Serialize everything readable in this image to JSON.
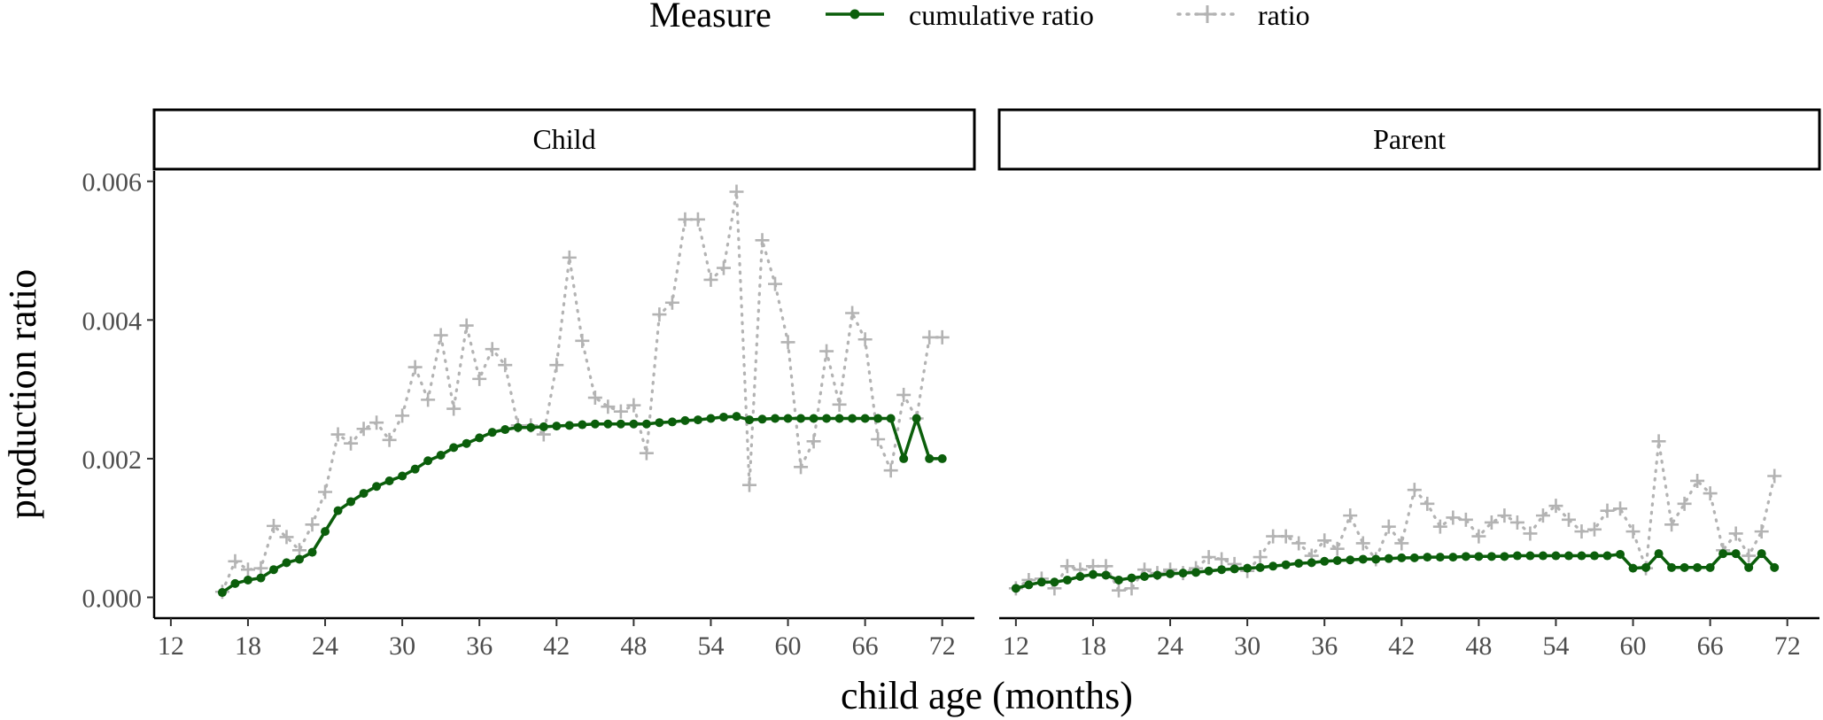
{
  "legend": {
    "title": "Measure",
    "items": [
      {
        "label": "cumulative ratio",
        "color": "#0b5e0b",
        "style": "solid-dots"
      },
      {
        "label": "ratio",
        "color": "#b3b3b3",
        "style": "dotted-plus"
      }
    ]
  },
  "chart_data": {
    "type": "line",
    "xlabel": "child age (months)",
    "ylabel": "production ratio",
    "xlim": [
      10.7,
      74.5
    ],
    "ylim": [
      -0.0003,
      0.00615
    ],
    "xticks": [
      12,
      18,
      24,
      30,
      36,
      42,
      48,
      54,
      60,
      66,
      72
    ],
    "yticks": [
      0.0,
      0.002,
      0.004,
      0.006
    ],
    "ytick_labels": [
      "0.000",
      "0.002",
      "0.004",
      "0.006"
    ],
    "grid": false,
    "legend_position": "top",
    "colors": {
      "cumulative": "#0b5e0b",
      "ratio": "#b3b3b3"
    },
    "panels": [
      {
        "title": "Child",
        "series": [
          {
            "name": "cumulative ratio",
            "x": [
              16,
              17,
              18,
              19,
              20,
              21,
              22,
              23,
              24,
              25,
              26,
              27,
              28,
              29,
              30,
              31,
              32,
              33,
              34,
              35,
              36,
              37,
              38,
              39,
              40,
              41,
              42,
              43,
              44,
              45,
              46,
              47,
              48,
              49,
              50,
              51,
              52,
              53,
              54,
              55,
              56,
              57,
              58,
              59,
              60,
              61,
              62,
              63,
              64,
              65,
              66,
              67,
              68,
              69,
              70,
              71,
              72
            ],
            "y": [
              7e-05,
              0.0002,
              0.00025,
              0.00028,
              0.0004,
              0.0005,
              0.00055,
              0.00065,
              0.00095,
              0.00125,
              0.00138,
              0.0015,
              0.0016,
              0.00168,
              0.00175,
              0.00185,
              0.00197,
              0.00205,
              0.00216,
              0.00222,
              0.0023,
              0.00238,
              0.00242,
              0.00245,
              0.00245,
              0.00246,
              0.00247,
              0.00248,
              0.00249,
              0.0025,
              0.0025,
              0.0025,
              0.0025,
              0.0025,
              0.00252,
              0.00253,
              0.00255,
              0.00256,
              0.00258,
              0.0026,
              0.00261,
              0.00256,
              0.00257,
              0.00258,
              0.00258,
              0.00258,
              0.00258,
              0.00258,
              0.00258,
              0.00258,
              0.00258,
              0.00258,
              0.00258,
              0.002,
              0.00258,
              0.002,
              0.002
            ]
          },
          {
            "name": "ratio",
            "x": [
              16,
              17,
              18,
              19,
              20,
              21,
              22,
              23,
              24,
              25,
              26,
              27,
              28,
              29,
              30,
              31,
              32,
              33,
              34,
              35,
              36,
              37,
              38,
              39,
              40,
              41,
              42,
              43,
              44,
              45,
              46,
              47,
              48,
              49,
              50,
              51,
              52,
              53,
              54,
              55,
              56,
              57,
              58,
              59,
              60,
              61,
              62,
              63,
              64,
              65,
              66,
              67,
              68,
              69,
              70,
              71,
              72
            ],
            "y": [
              8e-05,
              0.00052,
              0.0004,
              0.00042,
              0.00103,
              0.00087,
              0.00068,
              0.00105,
              0.00152,
              0.00235,
              0.00222,
              0.00243,
              0.00252,
              0.00227,
              0.00262,
              0.00332,
              0.00285,
              0.00378,
              0.00272,
              0.00392,
              0.00315,
              0.00358,
              0.00335,
              0.00248,
              0.00248,
              0.00235,
              0.00335,
              0.0049,
              0.0037,
              0.00288,
              0.00275,
              0.00268,
              0.00277,
              0.00208,
              0.00408,
              0.00425,
              0.00545,
              0.00545,
              0.00458,
              0.00475,
              0.00585,
              0.00162,
              0.00515,
              0.00452,
              0.00368,
              0.00188,
              0.00225,
              0.00355,
              0.00278,
              0.0041,
              0.00372,
              0.00228,
              0.00183,
              0.00292,
              0.00258,
              0.00375,
              0.00375
            ]
          }
        ]
      },
      {
        "title": "Parent",
        "series": [
          {
            "name": "cumulative ratio",
            "x": [
              12,
              13,
              14,
              15,
              16,
              17,
              18,
              19,
              20,
              21,
              22,
              23,
              24,
              25,
              26,
              27,
              28,
              29,
              30,
              31,
              32,
              33,
              34,
              35,
              36,
              37,
              38,
              39,
              40,
              41,
              42,
              43,
              44,
              45,
              46,
              47,
              48,
              49,
              50,
              51,
              52,
              53,
              54,
              55,
              56,
              57,
              58,
              59,
              60,
              61,
              62,
              63,
              64,
              65,
              66,
              67,
              68,
              69,
              70,
              71
            ],
            "y": [
              0.00013,
              0.00018,
              0.00022,
              0.00022,
              0.00025,
              0.0003,
              0.00033,
              0.00032,
              0.00025,
              0.00028,
              0.0003,
              0.00032,
              0.00034,
              0.00035,
              0.00036,
              0.00038,
              0.0004,
              0.00041,
              0.00042,
              0.00043,
              0.00045,
              0.00047,
              0.00049,
              0.0005,
              0.00052,
              0.00053,
              0.00054,
              0.00055,
              0.00055,
              0.00056,
              0.00057,
              0.00057,
              0.00058,
              0.00058,
              0.00058,
              0.00059,
              0.00059,
              0.00059,
              0.00059,
              0.0006,
              0.0006,
              0.0006,
              0.0006,
              0.0006,
              0.0006,
              0.0006,
              0.0006,
              0.00062,
              0.00042,
              0.00043,
              0.00063,
              0.00043,
              0.00043,
              0.00043,
              0.00043,
              0.00063,
              0.00063,
              0.00043,
              0.00063,
              0.00043
            ]
          },
          {
            "name": "ratio",
            "x": [
              12,
              13,
              14,
              15,
              16,
              17,
              18,
              19,
              20,
              21,
              22,
              23,
              24,
              25,
              26,
              27,
              28,
              29,
              30,
              31,
              32,
              33,
              34,
              35,
              36,
              37,
              38,
              39,
              40,
              41,
              42,
              43,
              44,
              45,
              46,
              47,
              48,
              49,
              50,
              51,
              52,
              53,
              54,
              55,
              56,
              57,
              58,
              59,
              60,
              61,
              62,
              63,
              64,
              65,
              66,
              67,
              68,
              69,
              70,
              71
            ],
            "y": [
              0.00013,
              0.00025,
              0.00027,
              0.00013,
              0.00045,
              0.0004,
              0.00045,
              0.00045,
              0.0001,
              0.00013,
              0.0004,
              0.00035,
              0.0004,
              0.00035,
              0.00042,
              0.00058,
              0.00055,
              0.00048,
              0.00038,
              0.00058,
              0.00088,
              0.00088,
              0.00078,
              0.0006,
              0.00082,
              0.0007,
              0.00118,
              0.00078,
              0.00055,
              0.00102,
              0.00078,
              0.00155,
              0.00135,
              0.00102,
              0.00115,
              0.00112,
              0.00088,
              0.00108,
              0.00118,
              0.00108,
              0.00092,
              0.00118,
              0.00132,
              0.00112,
              0.00095,
              0.00098,
              0.00125,
              0.00128,
              0.00095,
              0.00042,
              0.00225,
              0.00105,
              0.00135,
              0.00168,
              0.0015,
              0.00068,
              0.00092,
              0.0006,
              0.00095,
              0.00175
            ]
          }
        ]
      }
    ]
  }
}
